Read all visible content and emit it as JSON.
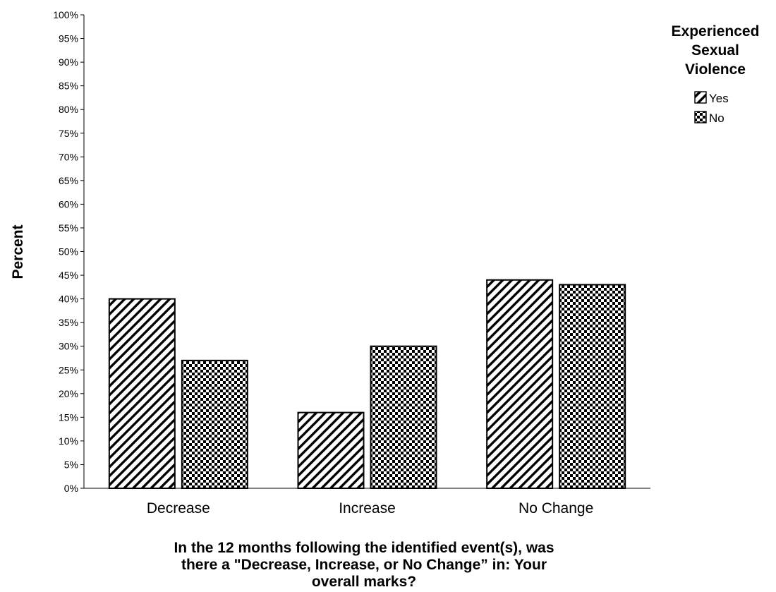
{
  "chart_data": {
    "type": "bar",
    "categories": [
      "Decrease",
      "Increase",
      "No Change"
    ],
    "series": [
      {
        "name": "Yes",
        "values": [
          40,
          16,
          44
        ],
        "pattern": "diagonal-stripes"
      },
      {
        "name": "No",
        "values": [
          27,
          30,
          43
        ],
        "pattern": "checkerboard"
      }
    ],
    "ylabel": "Percent",
    "xlabel_lines": [
      "In the 12 months following the identified event(s), was",
      "there a \"Decrease, Increase, or No Change” in: Your",
      "overall marks?"
    ],
    "ylim": [
      0,
      100
    ],
    "ytick_step": 5,
    "tick_suffix": "%",
    "legend": {
      "title_lines": [
        "Experienced",
        "Sexual",
        "Violence"
      ],
      "position": "top-right"
    },
    "grid": false,
    "colors": {
      "bar_fill": "#ffffff",
      "pattern": "#000000",
      "axis": "#000000",
      "bar_border": "#000000"
    }
  }
}
